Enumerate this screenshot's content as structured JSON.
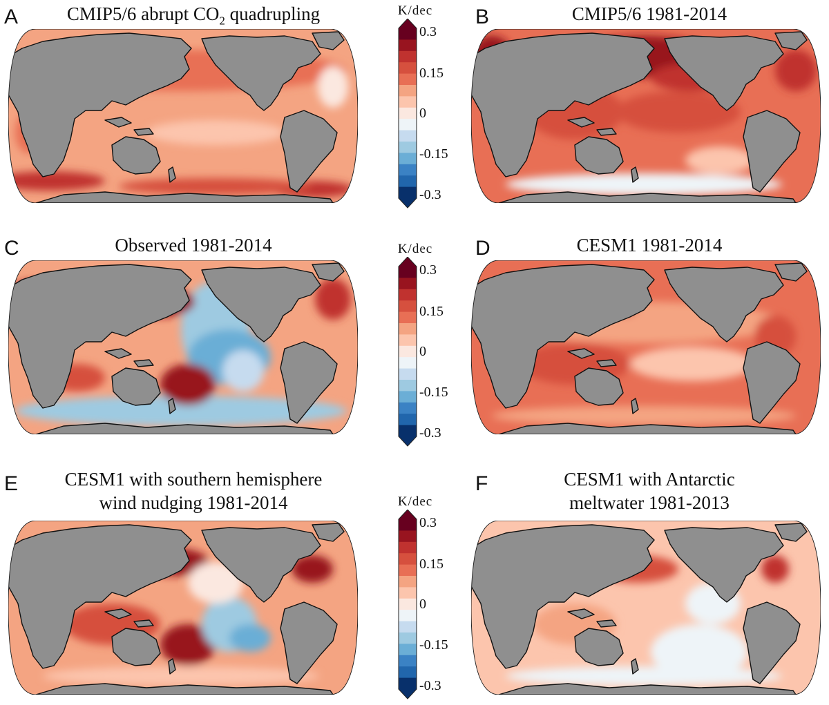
{
  "colors": {
    "land": "#8f8f8f",
    "outline": "#111111",
    "scale": [
      "#08306b",
      "#2166ac",
      "#3b82c4",
      "#6baed6",
      "#9ecae1",
      "#c6dbef",
      "#eef4f8",
      "#fbe8e0",
      "#fcc5ad",
      "#f4a482",
      "#e86f55",
      "#d6503e",
      "#c0322f",
      "#98141f",
      "#67001f"
    ]
  },
  "colorbar": {
    "title": "K/dec",
    "ticks": [
      "0.3",
      "0.15",
      "0",
      "-0.15",
      "-0.3"
    ]
  },
  "panels": [
    {
      "letter": "A",
      "title_line1": "CMIP5/6 abrupt CO",
      "title_sub": "2",
      "title_line1_end": " quadrupling",
      "title_line2": ""
    },
    {
      "letter": "B",
      "title_line1": "CMIP5/6 1981-2014",
      "title_line2": ""
    },
    {
      "letter": "C",
      "title_line1": "Observed 1981-2014",
      "title_line2": ""
    },
    {
      "letter": "D",
      "title_line1": "CESM1 1981-2014",
      "title_line2": ""
    },
    {
      "letter": "E",
      "title_line1": "CESM1 with southern hemisphere",
      "title_line2": "wind nudging 1981-2014"
    },
    {
      "letter": "F",
      "title_line1": "CESM1 with Antarctic",
      "title_line2": "meltwater 1981-2013"
    }
  ]
}
